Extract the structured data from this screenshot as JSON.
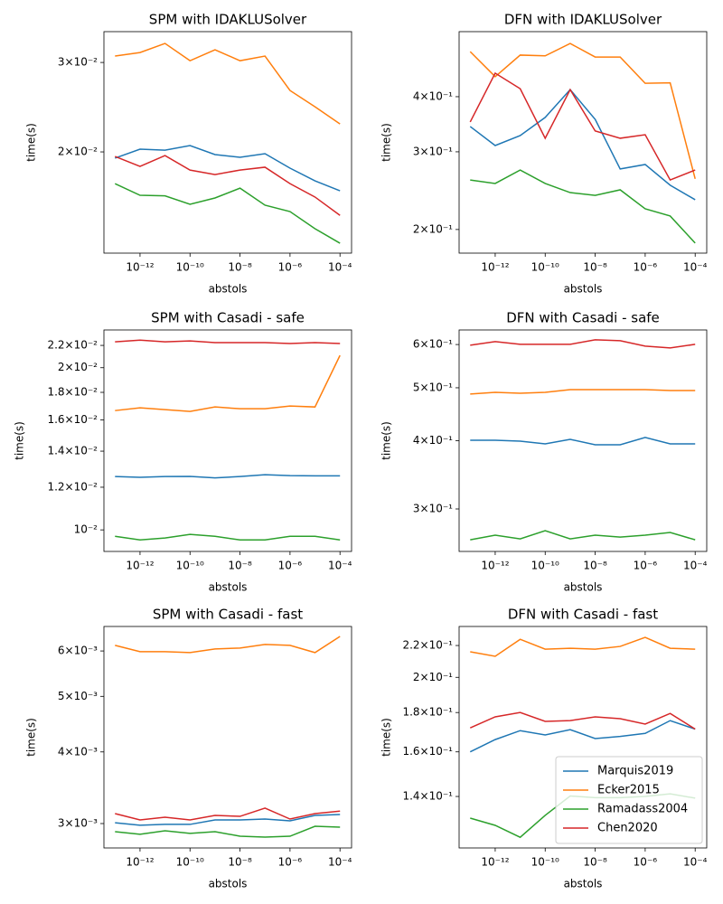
{
  "chart_data": [
    {
      "type": "line",
      "title": "SPM with IDAKLUSolver",
      "xlabel": "abstols",
      "ylabel": "time(s)",
      "xscale": "log",
      "yscale": "log",
      "x": [
        1e-13,
        1e-12,
        1e-11,
        1e-10,
        1e-09,
        1e-08,
        1e-07,
        1e-06,
        1e-05,
        0.0001
      ],
      "xlim": [
        3.6e-14,
        0.00029
      ],
      "xticks": [
        {
          "value": 1e-12,
          "label": "10⁻¹²"
        },
        {
          "value": 1e-10,
          "label": "10⁻¹⁰"
        },
        {
          "value": 1e-08,
          "label": "10⁻⁸"
        },
        {
          "value": 1e-06,
          "label": "10⁻⁶"
        },
        {
          "value": 0.0001,
          "label": "10⁻⁴"
        }
      ],
      "ylim": [
        0.01264,
        0.0345
      ],
      "yticks": [
        {
          "value": 0.02,
          "label": "2×10⁻²"
        },
        {
          "value": 0.03,
          "label": "3×10⁻²"
        }
      ],
      "series": [
        {
          "color": "#1f77b4",
          "values": [
            0.01944,
            0.02025,
            0.02016,
            0.02058,
            0.01976,
            0.01952,
            0.01984,
            0.01858,
            0.01754,
            0.01677
          ]
        },
        {
          "color": "#ff7f0e",
          "values": [
            0.03088,
            0.03138,
            0.0327,
            0.03024,
            0.03178,
            0.03024,
            0.03088,
            0.02642,
            0.02454,
            0.0227
          ]
        },
        {
          "color": "#2ca02c",
          "values": [
            0.01732,
            0.01643,
            0.01639,
            0.01577,
            0.01623,
            0.01697,
            0.01571,
            0.01526,
            0.01412,
            0.01322
          ]
        },
        {
          "color": "#d62728",
          "values": [
            0.01959,
            0.01873,
            0.01967,
            0.01842,
            0.01805,
            0.01842,
            0.01866,
            0.01732,
            0.0163,
            0.015
          ]
        }
      ]
    },
    {
      "type": "line",
      "title": "DFN with IDAKLUSolver",
      "xlabel": "abstols",
      "ylabel": "time(s)",
      "xscale": "log",
      "yscale": "log",
      "x": [
        1e-13,
        1e-12,
        1e-11,
        1e-10,
        1e-09,
        1e-08,
        1e-07,
        1e-06,
        1e-05,
        0.0001
      ],
      "xlim": [
        3.6e-14,
        0.00029
      ],
      "xticks": [
        {
          "value": 1e-12,
          "label": "10⁻¹²"
        },
        {
          "value": 1e-10,
          "label": "10⁻¹⁰"
        },
        {
          "value": 1e-08,
          "label": "10⁻⁸"
        },
        {
          "value": 1e-06,
          "label": "10⁻⁶"
        },
        {
          "value": 0.0001,
          "label": "10⁻⁴"
        }
      ],
      "ylim": [
        0.1768,
        0.5617
      ],
      "yticks": [
        {
          "value": 0.2,
          "label": "2×10⁻¹"
        },
        {
          "value": 0.3,
          "label": "3×10⁻¹"
        },
        {
          "value": 0.4,
          "label": "4×10⁻¹"
        }
      ],
      "series": [
        {
          "color": "#1f77b4",
          "values": [
            0.3424,
            0.31,
            0.3265,
            0.359,
            0.415,
            0.3553,
            0.2743,
            0.2808,
            0.252,
            0.2336
          ]
        },
        {
          "color": "#ff7f0e",
          "values": [
            0.506,
            0.444,
            0.497,
            0.495,
            0.528,
            0.492,
            0.492,
            0.429,
            0.43,
            0.2605
          ]
        },
        {
          "color": "#2ca02c",
          "values": [
            0.259,
            0.2543,
            0.2728,
            0.2543,
            0.2425,
            0.239,
            0.246,
            0.2228,
            0.2146,
            0.1863
          ]
        },
        {
          "color": "#d62728",
          "values": [
            0.3505,
            0.4523,
            0.417,
            0.322,
            0.415,
            0.3345,
            0.322,
            0.328,
            0.259,
            0.2728
          ]
        }
      ]
    },
    {
      "type": "line",
      "title": "SPM with Casadi - safe",
      "xlabel": "abstols",
      "ylabel": "time(s)",
      "xscale": "log",
      "yscale": "log",
      "x": [
        1e-13,
        1e-12,
        1e-11,
        1e-10,
        1e-09,
        1e-08,
        1e-07,
        1e-06,
        1e-05,
        0.0001
      ],
      "xlim": [
        3.6e-14,
        0.00029
      ],
      "xticks": [
        {
          "value": 1e-12,
          "label": "10⁻¹²"
        },
        {
          "value": 1e-10,
          "label": "10⁻¹⁰"
        },
        {
          "value": 1e-08,
          "label": "10⁻⁸"
        },
        {
          "value": 1e-06,
          "label": "10⁻⁶"
        },
        {
          "value": 0.0001,
          "label": "10⁻⁴"
        }
      ],
      "ylim": [
        0.00912,
        0.0235
      ],
      "yticks": [
        {
          "value": 0.01,
          "label": "10⁻²"
        },
        {
          "value": 0.012,
          "label": "1.2×10⁻²"
        },
        {
          "value": 0.014,
          "label": "1.4×10⁻²"
        },
        {
          "value": 0.016,
          "label": "1.6×10⁻²"
        },
        {
          "value": 0.018,
          "label": "1.8×10⁻²"
        },
        {
          "value": 0.02,
          "label": "2×10⁻²"
        },
        {
          "value": 0.022,
          "label": "2.2×10⁻²"
        }
      ],
      "series": [
        {
          "color": "#1f77b4",
          "values": [
            0.01256,
            0.01252,
            0.01256,
            0.01257,
            0.01249,
            0.01256,
            0.01266,
            0.01261,
            0.0126,
            0.0126
          ]
        },
        {
          "color": "#ff7f0e",
          "values": [
            0.01665,
            0.01685,
            0.01672,
            0.01659,
            0.01691,
            0.01678,
            0.01678,
            0.01698,
            0.01691,
            0.02108
          ]
        },
        {
          "color": "#2ca02c",
          "values": [
            0.00973,
            0.00958,
            0.00966,
            0.00981,
            0.00973,
            0.00958,
            0.00958,
            0.00973,
            0.00973,
            0.00958
          ]
        },
        {
          "color": "#d62728",
          "values": [
            0.02234,
            0.0225,
            0.02234,
            0.02242,
            0.02226,
            0.02226,
            0.02226,
            0.02218,
            0.02226,
            0.02218
          ]
        }
      ]
    },
    {
      "type": "line",
      "title": "DFN with Casadi - safe",
      "xlabel": "abstols",
      "ylabel": "time(s)",
      "xscale": "log",
      "yscale": "log",
      "x": [
        1e-13,
        1e-12,
        1e-11,
        1e-10,
        1e-09,
        1e-08,
        1e-07,
        1e-06,
        1e-05,
        0.0001
      ],
      "xlim": [
        3.6e-14,
        0.00029
      ],
      "xticks": [
        {
          "value": 1e-12,
          "label": "10⁻¹²"
        },
        {
          "value": 1e-10,
          "label": "10⁻¹⁰"
        },
        {
          "value": 1e-08,
          "label": "10⁻⁸"
        },
        {
          "value": 1e-06,
          "label": "10⁻⁶"
        },
        {
          "value": 0.0001,
          "label": "10⁻⁴"
        }
      ],
      "ylim": [
        0.2508,
        0.638
      ],
      "yticks": [
        {
          "value": 0.3,
          "label": "3×10⁻¹"
        },
        {
          "value": 0.4,
          "label": "4×10⁻¹"
        },
        {
          "value": 0.5,
          "label": "5×10⁻¹"
        },
        {
          "value": 0.6,
          "label": "6×10⁻¹"
        }
      ],
      "series": [
        {
          "color": "#1f77b4",
          "values": [
            0.4008,
            0.4008,
            0.3993,
            0.3947,
            0.4023,
            0.3932,
            0.3932,
            0.4055,
            0.3947,
            0.3947
          ]
        },
        {
          "color": "#ff7f0e",
          "values": [
            0.4869,
            0.4906,
            0.4887,
            0.4906,
            0.4962,
            0.4962,
            0.4962,
            0.4962,
            0.4943,
            0.4943
          ]
        },
        {
          "color": "#2ca02c",
          "values": [
            0.2634,
            0.2686,
            0.2644,
            0.2738,
            0.2644,
            0.2686,
            0.2665,
            0.2686,
            0.2717,
            0.2634
          ]
        },
        {
          "color": "#d62728",
          "values": [
            0.5983,
            0.6074,
            0.6005,
            0.6005,
            0.6005,
            0.612,
            0.6097,
            0.596,
            0.5914,
            0.6005
          ]
        }
      ]
    },
    {
      "type": "line",
      "title": "SPM with Casadi - fast",
      "xlabel": "abstols",
      "ylabel": "time(s)",
      "xscale": "log",
      "yscale": "log",
      "x": [
        1e-13,
        1e-12,
        1e-11,
        1e-10,
        1e-09,
        1e-08,
        1e-07,
        1e-06,
        1e-05,
        0.0001
      ],
      "xlim": [
        3.6e-14,
        0.00029
      ],
      "xticks": [
        {
          "value": 1e-12,
          "label": "10⁻¹²"
        },
        {
          "value": 1e-10,
          "label": "10⁻¹⁰"
        },
        {
          "value": 1e-08,
          "label": "10⁻⁸"
        },
        {
          "value": 1e-06,
          "label": "10⁻⁶"
        },
        {
          "value": 0.0001,
          "label": "10⁻⁴"
        }
      ],
      "ylim": [
        0.00272,
        0.00662
      ],
      "yticks": [
        {
          "value": 0.003,
          "label": "3×10⁻³"
        },
        {
          "value": 0.004,
          "label": "4×10⁻³"
        },
        {
          "value": 0.005,
          "label": "5×10⁻³"
        },
        {
          "value": 0.006,
          "label": "6×10⁻³"
        }
      ],
      "series": [
        {
          "color": "#1f77b4",
          "values": [
            0.00301,
            0.00298,
            0.00299,
            0.00299,
            0.003044,
            0.003044,
            0.003055,
            0.003033,
            0.0031,
            0.003111
          ]
        },
        {
          "color": "#ff7f0e",
          "values": [
            0.006136,
            0.005983,
            0.005983,
            0.005961,
            0.006049,
            0.006071,
            0.006158,
            0.006136,
            0.005961,
            0.006362
          ]
        },
        {
          "color": "#2ca02c",
          "values": [
            0.002904,
            0.002874,
            0.002914,
            0.002884,
            0.002904,
            0.002851,
            0.002841,
            0.002851,
            0.002967,
            0.002957
          ]
        },
        {
          "color": "#d62728",
          "values": [
            0.003122,
            0.003044,
            0.003077,
            0.003044,
            0.0031,
            0.003088,
            0.003192,
            0.003055,
            0.003122,
            0.003154
          ]
        }
      ]
    },
    {
      "type": "line",
      "title": "DFN with Casadi - fast",
      "xlabel": "abstols",
      "ylabel": "time(s)",
      "xscale": "log",
      "yscale": "log",
      "legend": "lower right",
      "x": [
        1e-13,
        1e-12,
        1e-11,
        1e-10,
        1e-09,
        1e-08,
        1e-07,
        1e-06,
        1e-05,
        0.0001
      ],
      "xlim": [
        3.6e-14,
        0.00029
      ],
      "xticks": [
        {
          "value": 1e-12,
          "label": "10⁻¹²"
        },
        {
          "value": 1e-10,
          "label": "10⁻¹⁰"
        },
        {
          "value": 1e-08,
          "label": "10⁻⁸"
        },
        {
          "value": 1e-06,
          "label": "10⁻⁶"
        },
        {
          "value": 0.0001,
          "label": "10⁻⁴"
        }
      ],
      "ylim": [
        0.12,
        0.2329
      ],
      "yticks": [
        {
          "value": 0.14,
          "label": "1.4×10⁻¹"
        },
        {
          "value": 0.16,
          "label": "1.6×10⁻¹"
        },
        {
          "value": 0.18,
          "label": "1.8×10⁻¹"
        },
        {
          "value": 0.2,
          "label": "2×10⁻¹"
        },
        {
          "value": 0.22,
          "label": "2.2×10⁻¹"
        }
      ],
      "series": [
        {
          "name": "Marquis2019",
          "color": "#1f77b4",
          "values": [
            0.16,
            0.166,
            0.1705,
            0.1683,
            0.171,
            0.1665,
            0.1676,
            0.1691,
            0.1757,
            0.1713
          ]
        },
        {
          "name": "Ecker2015",
          "color": "#ff7f0e",
          "values": [
            0.2159,
            0.213,
            0.2241,
            0.2176,
            0.2182,
            0.2176,
            0.2194,
            0.2254,
            0.2182,
            0.2176
          ]
        },
        {
          "name": "Ramadass2004",
          "color": "#2ca02c",
          "values": [
            0.1312,
            0.1284,
            0.1239,
            0.1323,
            0.1402,
            0.1395,
            0.1395,
            0.14,
            0.1411,
            0.1393
          ]
        },
        {
          "name": "Chen2020",
          "color": "#d62728",
          "values": [
            0.1719,
            0.1777,
            0.18,
            0.1753,
            0.1757,
            0.1777,
            0.1767,
            0.1739,
            0.1795,
            0.1713
          ]
        }
      ]
    }
  ]
}
